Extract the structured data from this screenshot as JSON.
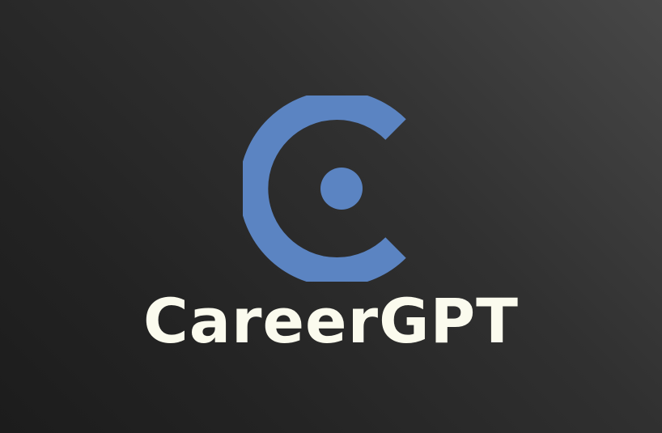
{
  "brand": {
    "name": "CareerGPT",
    "logo_icon": "c-ring-dot-logo-icon"
  },
  "colors": {
    "logo_blue": "#5b84c2",
    "wordmark": "#fbfbee",
    "background_dark": "#1c1c1c",
    "background_light": "#474747"
  }
}
